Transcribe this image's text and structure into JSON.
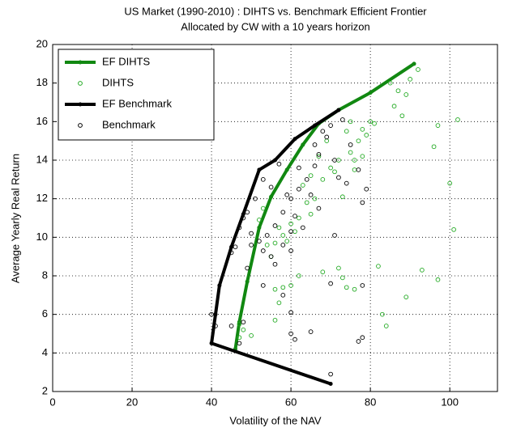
{
  "chart_data": {
    "type": "scatter",
    "title": "US Market (1990-2010) : DIHTS vs. Benchmark Efficient Frontier",
    "subtitle": "Allocated by CW with a 10 years horizon",
    "xlabel": "Volatility of the NAV",
    "ylabel": "Average Yearly Real Return",
    "xlim": [
      0,
      112
    ],
    "ylim": [
      2,
      20
    ],
    "xticks": [
      0,
      20,
      40,
      60,
      80,
      100
    ],
    "yticks": [
      2,
      4,
      6,
      8,
      10,
      12,
      14,
      16,
      18,
      20
    ],
    "grid": true,
    "legend": "upper-left",
    "series": [
      {
        "name": "EF DIHTS",
        "color": "#118811",
        "mode": "line",
        "x": [
          46,
          47,
          49,
          52,
          55,
          59,
          63,
          67,
          72,
          80,
          91
        ],
        "values": [
          4.2,
          5.6,
          7.7,
          10.5,
          12.1,
          13.5,
          14.8,
          15.9,
          16.6,
          17.5,
          19
        ]
      },
      {
        "name": "DIHTS",
        "color": "#22aa22",
        "mode": "markers",
        "x": [
          47,
          48,
          50,
          47,
          56,
          58,
          57,
          56,
          60,
          62,
          68,
          72,
          74,
          76,
          73,
          83,
          84,
          82,
          89,
          93,
          97,
          101,
          100,
          96,
          97,
          102,
          88,
          89,
          90,
          92,
          86,
          87,
          85,
          80,
          78,
          77,
          75,
          72,
          70,
          68,
          66,
          64,
          62,
          60,
          58,
          56,
          55,
          57,
          54,
          63,
          65,
          71,
          73,
          76,
          79,
          81,
          78,
          69,
          67,
          74,
          75,
          76,
          65,
          61,
          59,
          52,
          53
        ],
        "values": [
          4.8,
          5.2,
          4.9,
          5.5,
          7.3,
          7.4,
          6.6,
          5.7,
          7.5,
          8.0,
          8.2,
          8.4,
          7.4,
          7.3,
          7.9,
          6.0,
          5.4,
          8.5,
          6.9,
          8.3,
          7.8,
          10.4,
          12.8,
          14.7,
          15.8,
          16.1,
          16.3,
          17.4,
          18.2,
          18.7,
          16.8,
          17.6,
          18.0,
          16.0,
          15.6,
          15.0,
          14.4,
          14.0,
          13.6,
          13.0,
          12.0,
          11.8,
          11.0,
          10.7,
          10.1,
          9.7,
          9.0,
          10.5,
          9.6,
          12.7,
          13.2,
          13.4,
          12.1,
          13.5,
          15.3,
          15.9,
          14.2,
          15.0,
          14.2,
          15.5,
          16.0,
          14.0,
          11.2,
          10.3,
          9.8,
          10.9,
          11.5
        ]
      },
      {
        "name": "EF Benchmark",
        "color": "#000000",
        "mode": "line",
        "x": [
          70,
          40,
          41,
          42,
          45,
          48,
          52,
          56,
          61,
          66,
          72
        ],
        "values": [
          2.4,
          4.5,
          6.0,
          7.5,
          9.5,
          11.2,
          13.5,
          14.0,
          15.1,
          15.8,
          16.6
        ]
      },
      {
        "name": "Benchmark",
        "color": "#000000",
        "mode": "markers",
        "x": [
          40,
          41,
          45,
          48,
          47,
          53,
          58,
          60,
          61,
          60,
          65,
          70,
          70,
          71,
          78,
          77,
          78,
          79,
          78,
          77,
          75,
          73,
          70,
          69,
          67,
          66,
          64,
          62,
          60,
          58,
          56,
          54,
          52,
          50,
          48,
          47,
          49,
          51,
          53,
          55,
          57,
          59,
          61,
          63,
          60,
          58,
          55,
          56,
          53,
          50,
          45,
          46,
          49,
          66,
          68,
          71,
          72,
          74,
          62,
          65,
          67,
          60
        ],
        "values": [
          6.0,
          5.4,
          5.4,
          5.6,
          4.5,
          7.5,
          7.0,
          6.1,
          4.7,
          5.0,
          5.1,
          2.9,
          7.6,
          10.1,
          4.8,
          4.6,
          7.5,
          12.5,
          11.8,
          13.5,
          14.8,
          16.1,
          15.8,
          15.2,
          14.3,
          13.7,
          13.0,
          12.5,
          12.0,
          11.3,
          10.6,
          10.1,
          9.8,
          10.2,
          11.0,
          10.5,
          11.3,
          12.0,
          13.0,
          12.6,
          13.8,
          12.2,
          11.1,
          10.5,
          9.3,
          9.6,
          9.0,
          8.6,
          9.3,
          9.6,
          9.2,
          9.5,
          8.4,
          14.8,
          15.5,
          14.0,
          13.1,
          12.8,
          13.6,
          12.2,
          11.5,
          10.3
        ]
      }
    ]
  }
}
